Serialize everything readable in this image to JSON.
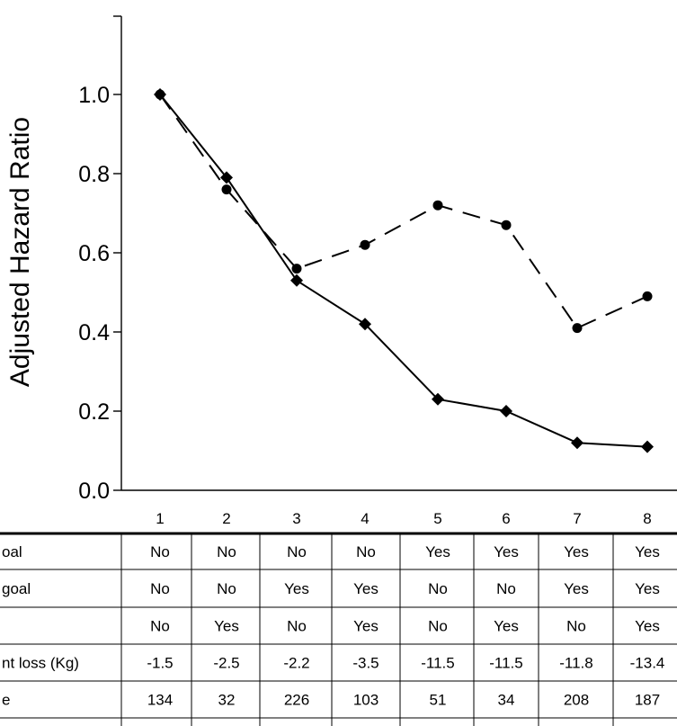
{
  "chart_data": {
    "type": "line",
    "ylabel": "Adjusted Hazard Ratio",
    "xlabel": "",
    "ylim": [
      0,
      1.0
    ],
    "y_ticks": [
      "0.0",
      "0.2",
      "0.4",
      "0.6",
      "0.8",
      "1.0"
    ],
    "y_tick_values": [
      0,
      0.2,
      0.4,
      0.6,
      0.8,
      1.0
    ],
    "categories": [
      "1",
      "2",
      "3",
      "4",
      "5",
      "6",
      "7",
      "8"
    ],
    "series": [
      {
        "marker": "diamond",
        "line_style": "solid",
        "values": [
          1.0,
          0.79,
          0.53,
          0.42,
          0.23,
          0.2,
          0.12,
          0.11
        ]
      },
      {
        "marker": "circle",
        "line_style": "dashed",
        "values": [
          1.0,
          0.76,
          0.56,
          0.62,
          0.72,
          0.67,
          0.41,
          0.49
        ]
      }
    ],
    "table": {
      "rows": [
        {
          "label": "oal",
          "values": [
            "No",
            "No",
            "No",
            "No",
            "Yes",
            "Yes",
            "Yes",
            "Yes"
          ]
        },
        {
          "label": "goal",
          "values": [
            "No",
            "No",
            "Yes",
            "Yes",
            "No",
            "No",
            "Yes",
            "Yes"
          ]
        },
        {
          "label": "",
          "values": [
            "No",
            "Yes",
            "No",
            "Yes",
            "No",
            "Yes",
            "No",
            "Yes"
          ]
        },
        {
          "label": "nt loss (Kg)",
          "values": [
            "-1.5",
            "-2.5",
            "-2.2",
            "-3.5",
            "-11.5",
            "-11.5",
            "-11.8",
            "-13.4"
          ]
        },
        {
          "label": "e",
          "values": [
            "134",
            "32",
            "226",
            "103",
            "51",
            "34",
            "208",
            "187"
          ]
        }
      ]
    }
  }
}
